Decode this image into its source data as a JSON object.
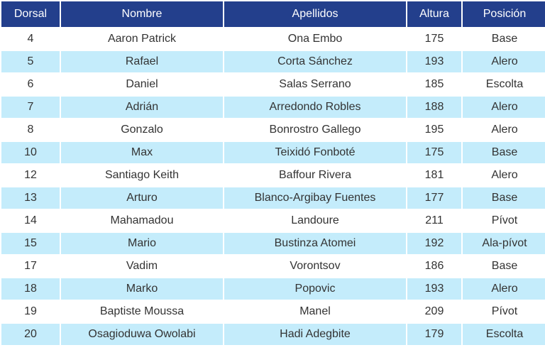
{
  "headers": [
    "Dorsal",
    "Nombre",
    "Apellidos",
    "Altura",
    "Posición"
  ],
  "rows": [
    [
      "4",
      "Aaron Patrick",
      "Ona Embo",
      "175",
      "Base"
    ],
    [
      "5",
      "Rafael",
      "Corta Sánchez",
      "193",
      "Alero"
    ],
    [
      "6",
      "Daniel",
      "Salas Serrano",
      "185",
      "Escolta"
    ],
    [
      "7",
      "Adrián",
      "Arredondo Robles",
      "188",
      "Alero"
    ],
    [
      "8",
      "Gonzalo",
      "Bonrostro Gallego",
      "195",
      "Alero"
    ],
    [
      "10",
      "Max",
      "Teixidó Fonboté",
      "175",
      "Base"
    ],
    [
      "12",
      "Santiago Keith",
      "Baffour Rivera",
      "181",
      "Alero"
    ],
    [
      "13",
      "Arturo",
      "Blanco-Argibay Fuentes",
      "177",
      "Base"
    ],
    [
      "14",
      "Mahamadou",
      "Landoure",
      "211",
      "Pívot"
    ],
    [
      "15",
      "Mario",
      "Bustinza Atomei",
      "192",
      "Ala-pívot"
    ],
    [
      "17",
      "Vadim",
      "Vorontsov",
      "186",
      "Base"
    ],
    [
      "18",
      "Marko",
      "Popovic",
      "193",
      "Alero"
    ],
    [
      "19",
      "Baptiste Moussa",
      "Manel",
      "209",
      "Pívot"
    ],
    [
      "20",
      "Osagioduwa Owolabi",
      "Hadi Adegbite",
      "179",
      "Escolta"
    ]
  ]
}
